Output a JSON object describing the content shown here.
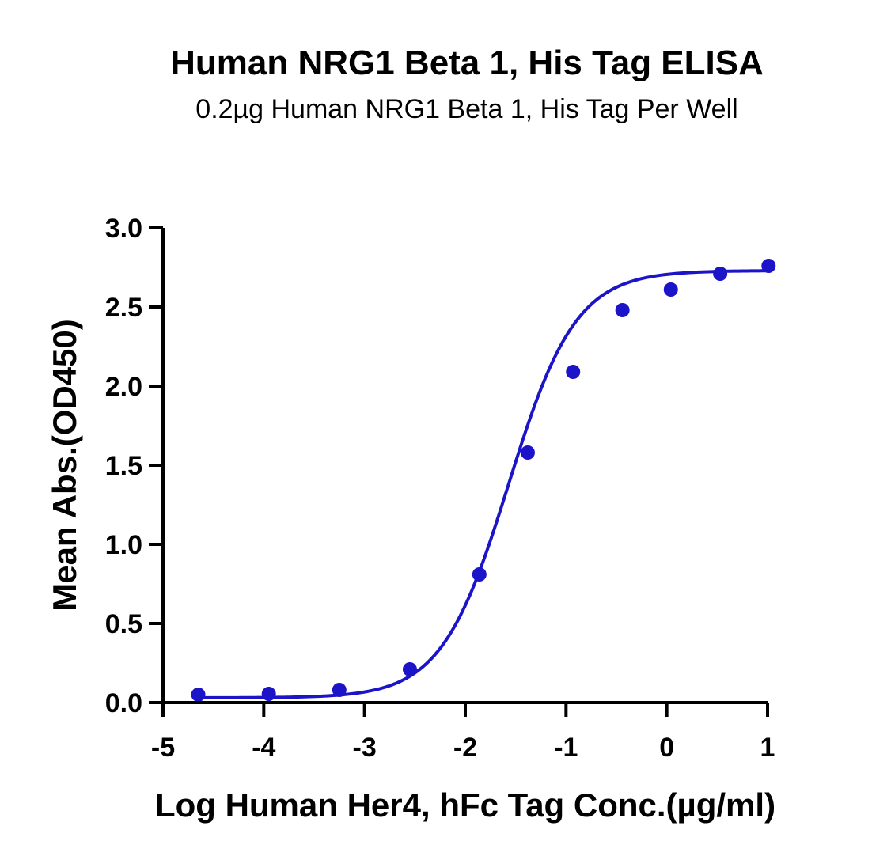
{
  "chart_data": {
    "type": "scatter",
    "title": "Human NRG1 Beta 1, His Tag ELISA",
    "subtitle": "0.2µg Human NRG1 Beta 1, His Tag Per Well",
    "xlabel": "Log Human Her4, hFc Tag Conc.(µg/ml)",
    "ylabel": "Mean Abs.(OD450)",
    "xlim": [
      -5,
      1
    ],
    "ylim": [
      0,
      3.0
    ],
    "xticks": [
      -5,
      -4,
      -3,
      -2,
      -1,
      0,
      1
    ],
    "xtick_labels": [
      "-5",
      "-4",
      "-3",
      "-2",
      "-1",
      "0",
      "1"
    ],
    "yticks": [
      0,
      0.5,
      1.0,
      1.5,
      2.0,
      2.5,
      3.0
    ],
    "ytick_labels": [
      "0.0",
      "0.5",
      "1.0",
      "1.5",
      "2.0",
      "2.5",
      "3.0"
    ],
    "grid": false,
    "color": "#1c14c8",
    "series": [
      {
        "points": [
          {
            "x": -4.65,
            "y": 0.05
          },
          {
            "x": -3.95,
            "y": 0.055
          },
          {
            "x": -3.25,
            "y": 0.08
          },
          {
            "x": -2.55,
            "y": 0.21
          },
          {
            "x": -1.86,
            "y": 0.81
          },
          {
            "x": -1.38,
            "y": 1.58
          },
          {
            "x": -0.93,
            "y": 2.09
          },
          {
            "x": -0.44,
            "y": 2.48
          },
          {
            "x": 0.04,
            "y": 2.61
          },
          {
            "x": 0.53,
            "y": 2.71
          },
          {
            "x": 1.01,
            "y": 2.76
          }
        ]
      }
    ],
    "fit": {
      "model": "4PL",
      "bottom": 0.03,
      "top": 2.73,
      "logEC50": -1.57,
      "hill": 1.3,
      "x_from": -4.65,
      "x_to": 1.0
    }
  }
}
